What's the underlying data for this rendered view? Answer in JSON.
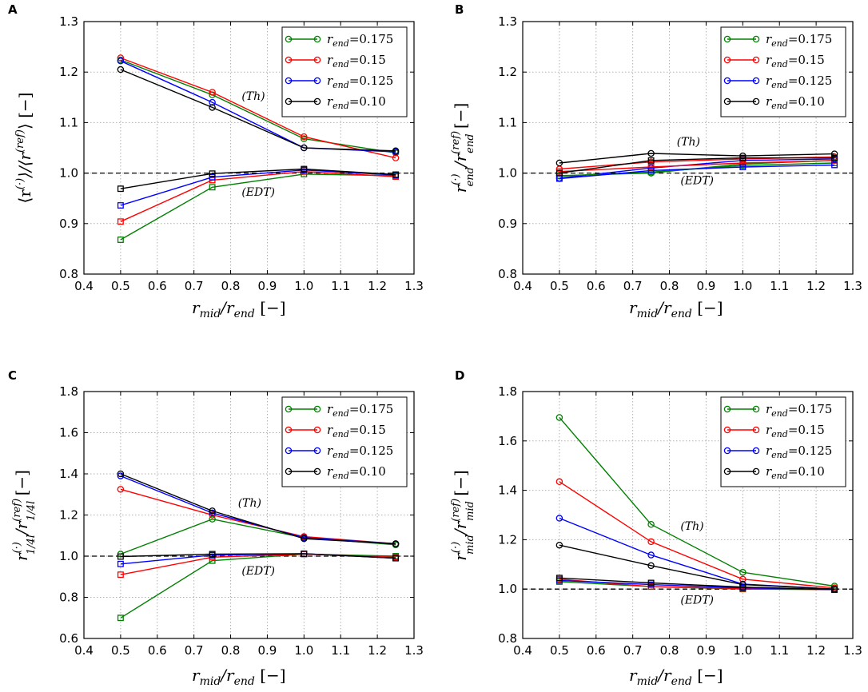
{
  "figure": {
    "series_colors": {
      "0.175": "#008000",
      "0.15": "#ff0000",
      "0.125": "#0000ff",
      "0.10": "#000000"
    }
  },
  "chart_data": [
    {
      "type": "line",
      "panel_label": "A",
      "xlabel": "r_mid/r_end [−]",
      "ylabel": "⟨r^(·)⟩/⟨r^(ref)⟩ [−]",
      "xlim": [
        0.4,
        1.3
      ],
      "ylim": [
        0.8,
        1.3
      ],
      "xticks": [
        0.4,
        0.5,
        0.6,
        0.7,
        0.8,
        0.9,
        1.0,
        1.1,
        1.2,
        1.3
      ],
      "yticks": [
        0.8,
        0.9,
        1.0,
        1.1,
        1.2,
        1.3
      ],
      "xtick_labels": [
        "0.4",
        "0.5",
        "0.6",
        "0.7",
        "0.8",
        "0.9",
        "1.0",
        "1.1",
        "1.2",
        "1.3"
      ],
      "ytick_labels": [
        "0.8",
        "0.9",
        "1.0",
        "1.1",
        "1.2",
        "1.3"
      ],
      "grid": true,
      "reference_line": 1.0,
      "legend": {
        "position": "top-right",
        "entries": [
          {
            "label_sym": "r",
            "label_sub": "end",
            "label_val": "=0.175",
            "color": "#008000"
          },
          {
            "label_sym": "r",
            "label_sub": "end",
            "label_val": "=0.15",
            "color": "#ff0000"
          },
          {
            "label_sym": "r",
            "label_sub": "end",
            "label_val": "=0.125",
            "color": "#0000ff"
          },
          {
            "label_sym": "r",
            "label_sub": "end",
            "label_val": "=0.10",
            "color": "#000000"
          }
        ]
      },
      "annotations": [
        {
          "text": "(Th)",
          "x": 0.83,
          "y": 1.145
        },
        {
          "text": "(EDT)",
          "x": 0.83,
          "y": 0.955
        }
      ],
      "x": [
        0.5,
        0.75,
        1.0,
        1.25
      ],
      "series": [
        {
          "name": "Th r_end=0.175",
          "marker": "circle",
          "color": "#008000",
          "values": [
            1.224,
            1.155,
            1.068,
            1.04
          ]
        },
        {
          "name": "Th r_end=0.15",
          "marker": "circle",
          "color": "#ff0000",
          "values": [
            1.228,
            1.16,
            1.072,
            1.03
          ]
        },
        {
          "name": "Th r_end=0.125",
          "marker": "circle",
          "color": "#0000ff",
          "values": [
            1.222,
            1.14,
            1.05,
            1.042
          ]
        },
        {
          "name": "Th r_end=0.10",
          "marker": "circle",
          "color": "#000000",
          "values": [
            1.205,
            1.13,
            1.05,
            1.044
          ]
        },
        {
          "name": "EDT r_end=0.175",
          "marker": "square",
          "color": "#008000",
          "values": [
            0.868,
            0.972,
            0.998,
            0.995
          ]
        },
        {
          "name": "EDT r_end=0.15",
          "marker": "square",
          "color": "#ff0000",
          "values": [
            0.904,
            0.986,
            1.003,
            0.993
          ]
        },
        {
          "name": "EDT r_end=0.125",
          "marker": "square",
          "color": "#0000ff",
          "values": [
            0.936,
            0.992,
            1.006,
            0.996
          ]
        },
        {
          "name": "EDT r_end=0.10",
          "marker": "square",
          "color": "#000000",
          "values": [
            0.969,
            0.999,
            1.008,
            0.997
          ]
        }
      ]
    },
    {
      "type": "line",
      "panel_label": "B",
      "xlabel": "r_mid/r_end [−]",
      "ylabel": "r_end^(·)/r_end^(ref) [−]",
      "xlim": [
        0.4,
        1.3
      ],
      "ylim": [
        0.8,
        1.3
      ],
      "xticks": [
        0.4,
        0.5,
        0.6,
        0.7,
        0.8,
        0.9,
        1.0,
        1.1,
        1.2,
        1.3
      ],
      "yticks": [
        0.8,
        0.9,
        1.0,
        1.1,
        1.2,
        1.3
      ],
      "xtick_labels": [
        "0.4",
        "0.5",
        "0.6",
        "0.7",
        "0.8",
        "0.9",
        "1.0",
        "1.1",
        "1.2",
        "1.3"
      ],
      "ytick_labels": [
        "0.8",
        "0.9",
        "1.0",
        "1.1",
        "1.2",
        "1.3"
      ],
      "grid": true,
      "reference_line": 1.0,
      "legend": {
        "position": "top-right",
        "entries": [
          {
            "label_sym": "r",
            "label_sub": "end",
            "label_val": "=0.175",
            "color": "#008000"
          },
          {
            "label_sym": "r",
            "label_sub": "end",
            "label_val": "=0.15",
            "color": "#ff0000"
          },
          {
            "label_sym": "r",
            "label_sub": "end",
            "label_val": "=0.125",
            "color": "#0000ff"
          },
          {
            "label_sym": "r",
            "label_sub": "end",
            "label_val": "=0.10",
            "color": "#000000"
          }
        ]
      },
      "annotations": [
        {
          "text": "(Th)",
          "x": 0.82,
          "y": 1.055
        },
        {
          "text": "(EDT)",
          "x": 0.83,
          "y": 0.978
        }
      ],
      "x": [
        0.5,
        0.75,
        1.0,
        1.25
      ],
      "series": [
        {
          "name": "Th r_end=0.175",
          "marker": "circle",
          "color": "#008000",
          "values": [
            0.995,
            1.0,
            1.018,
            1.025
          ]
        },
        {
          "name": "Th r_end=0.15",
          "marker": "circle",
          "color": "#ff0000",
          "values": [
            1.008,
            1.022,
            1.028,
            1.032
          ]
        },
        {
          "name": "Th r_end=0.125",
          "marker": "circle",
          "color": "#0000ff",
          "values": [
            0.99,
            1.01,
            1.025,
            1.028
          ]
        },
        {
          "name": "Th r_end=0.10",
          "marker": "circle",
          "color": "#000000",
          "values": [
            1.02,
            1.039,
            1.034,
            1.038
          ]
        },
        {
          "name": "EDT r_end=0.175",
          "marker": "square",
          "color": "#008000",
          "values": [
            0.994,
            1.002,
            1.015,
            1.02
          ]
        },
        {
          "name": "EDT r_end=0.15",
          "marker": "square",
          "color": "#ff0000",
          "values": [
            1.003,
            1.012,
            1.02,
            1.025
          ]
        },
        {
          "name": "EDT r_end=0.125",
          "marker": "square",
          "color": "#0000ff",
          "values": [
            0.989,
            1.005,
            1.012,
            1.016
          ]
        },
        {
          "name": "EDT r_end=0.10",
          "marker": "square",
          "color": "#000000",
          "values": [
            1.0,
            1.025,
            1.03,
            1.03
          ]
        }
      ]
    },
    {
      "type": "line",
      "panel_label": "C",
      "xlabel": "r_mid/r_end [−]",
      "ylabel": "r_1/4l^(·)/r_1/4l^(ref) [−]",
      "xlim": [
        0.4,
        1.3
      ],
      "ylim": [
        0.6,
        1.8
      ],
      "xticks": [
        0.4,
        0.5,
        0.6,
        0.7,
        0.8,
        0.9,
        1.0,
        1.1,
        1.2,
        1.3
      ],
      "yticks": [
        0.6,
        0.8,
        1.0,
        1.2,
        1.4,
        1.6,
        1.8
      ],
      "xtick_labels": [
        "0.4",
        "0.5",
        "0.6",
        "0.7",
        "0.8",
        "0.9",
        "1.0",
        "1.1",
        "1.2",
        "1.3"
      ],
      "ytick_labels": [
        "0.6",
        "0.8",
        "1.0",
        "1.2",
        "1.4",
        "1.6",
        "1.8"
      ],
      "grid": true,
      "reference_line": 1.0,
      "legend": {
        "position": "top-right",
        "entries": [
          {
            "label_sym": "r",
            "label_sub": "end",
            "label_val": "=0.175",
            "color": "#008000"
          },
          {
            "label_sym": "r",
            "label_sub": "end",
            "label_val": "=0.15",
            "color": "#ff0000"
          },
          {
            "label_sym": "r",
            "label_sub": "end",
            "label_val": "=0.125",
            "color": "#0000ff"
          },
          {
            "label_sym": "r",
            "label_sub": "end",
            "label_val": "=0.10",
            "color": "#000000"
          }
        ]
      },
      "annotations": [
        {
          "text": "(Th)",
          "x": 0.82,
          "y": 1.24
        },
        {
          "text": "(EDT)",
          "x": 0.83,
          "y": 0.91
        }
      ],
      "x": [
        0.5,
        0.75,
        1.0,
        1.25
      ],
      "series": [
        {
          "name": "Th r_end=0.175",
          "marker": "circle",
          "color": "#008000",
          "values": [
            1.01,
            1.18,
            1.09,
            1.055
          ]
        },
        {
          "name": "Th r_end=0.15",
          "marker": "circle",
          "color": "#ff0000",
          "values": [
            1.325,
            1.2,
            1.095,
            1.06
          ]
        },
        {
          "name": "Th r_end=0.125",
          "marker": "circle",
          "color": "#0000ff",
          "values": [
            1.39,
            1.21,
            1.09,
            1.06
          ]
        },
        {
          "name": "Th r_end=0.10",
          "marker": "circle",
          "color": "#000000",
          "values": [
            1.4,
            1.22,
            1.085,
            1.06
          ]
        },
        {
          "name": "EDT r_end=0.175",
          "marker": "square",
          "color": "#008000",
          "values": [
            0.7,
            0.978,
            1.01,
            1.0
          ]
        },
        {
          "name": "EDT r_end=0.15",
          "marker": "square",
          "color": "#ff0000",
          "values": [
            0.91,
            0.995,
            1.01,
            0.995
          ]
        },
        {
          "name": "EDT r_end=0.125",
          "marker": "square",
          "color": "#0000ff",
          "values": [
            0.962,
            1.005,
            1.012,
            0.99
          ]
        },
        {
          "name": "EDT r_end=0.10",
          "marker": "square",
          "color": "#000000",
          "values": [
            0.998,
            1.01,
            1.012,
            0.99
          ]
        }
      ]
    },
    {
      "type": "line",
      "panel_label": "D",
      "xlabel": "r_mid/r_end [−]",
      "ylabel": "r_mid^(·)/r_mid^(ref) [−]",
      "xlim": [
        0.4,
        1.3
      ],
      "ylim": [
        0.8,
        1.8
      ],
      "xticks": [
        0.4,
        0.5,
        0.6,
        0.7,
        0.8,
        0.9,
        1.0,
        1.1,
        1.2,
        1.3
      ],
      "yticks": [
        0.8,
        1.0,
        1.2,
        1.4,
        1.6,
        1.8
      ],
      "xtick_labels": [
        "0.4",
        "0.5",
        "0.6",
        "0.7",
        "0.8",
        "0.9",
        "1.0",
        "1.1",
        "1.2",
        "1.3"
      ],
      "ytick_labels": [
        "0.8",
        "1.0",
        "1.2",
        "1.4",
        "1.6",
        "1.8"
      ],
      "grid": true,
      "reference_line": 1.0,
      "legend": {
        "position": "top-right",
        "entries": [
          {
            "label_sym": "r",
            "label_sub": "end",
            "label_val": "=0.175",
            "color": "#008000"
          },
          {
            "label_sym": "r",
            "label_sub": "end",
            "label_val": "=0.15",
            "color": "#ff0000"
          },
          {
            "label_sym": "r",
            "label_sub": "end",
            "label_val": "=0.125",
            "color": "#0000ff"
          },
          {
            "label_sym": "r",
            "label_sub": "end",
            "label_val": "=0.10",
            "color": "#000000"
          }
        ]
      },
      "annotations": [
        {
          "text": "(Th)",
          "x": 0.83,
          "y": 1.24
        },
        {
          "text": "(EDT)",
          "x": 0.83,
          "y": 0.94
        }
      ],
      "x": [
        0.5,
        0.75,
        1.0,
        1.25
      ],
      "series": [
        {
          "name": "Th r_end=0.175",
          "marker": "circle",
          "color": "#008000",
          "values": [
            1.695,
            1.262,
            1.068,
            1.012
          ]
        },
        {
          "name": "Th r_end=0.15",
          "marker": "circle",
          "color": "#ff0000",
          "values": [
            1.435,
            1.192,
            1.04,
            1.005
          ]
        },
        {
          "name": "Th r_end=0.125",
          "marker": "circle",
          "color": "#0000ff",
          "values": [
            1.287,
            1.138,
            1.02,
            1.0
          ]
        },
        {
          "name": "Th r_end=0.10",
          "marker": "circle",
          "color": "#000000",
          "values": [
            1.178,
            1.095,
            1.018,
            1.0
          ]
        },
        {
          "name": "EDT r_end=0.175",
          "marker": "square",
          "color": "#008000",
          "values": [
            1.03,
            1.01,
            1.0,
            0.998
          ]
        },
        {
          "name": "EDT r_end=0.15",
          "marker": "square",
          "color": "#ff0000",
          "values": [
            1.04,
            1.01,
            1.002,
            0.998
          ]
        },
        {
          "name": "EDT r_end=0.125",
          "marker": "square",
          "color": "#0000ff",
          "values": [
            1.035,
            1.018,
            1.005,
            0.998
          ]
        },
        {
          "name": "EDT r_end=0.10",
          "marker": "square",
          "color": "#000000",
          "values": [
            1.045,
            1.025,
            1.008,
            0.998
          ]
        }
      ]
    }
  ]
}
